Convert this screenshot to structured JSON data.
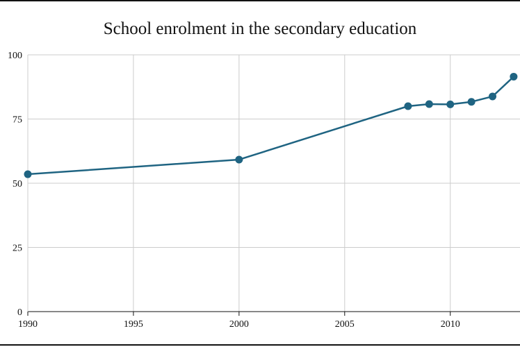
{
  "chart_data": {
    "type": "line",
    "title": "School enrolment in the secondary education",
    "xlabel": "",
    "ylabel": "",
    "x_ticks": [
      "1990",
      "1995",
      "2000",
      "2005",
      "2010"
    ],
    "y_ticks": [
      "0",
      "25",
      "50",
      "75",
      "100"
    ],
    "xlim": [
      1990,
      2013.3
    ],
    "ylim": [
      0,
      100
    ],
    "grid": true,
    "series": [
      {
        "color": "#1f6482",
        "x": [
          1990,
          2000,
          2008,
          2009,
          2010,
          2011,
          2012,
          2013
        ],
        "y": [
          53.5,
          59.2,
          80.0,
          80.8,
          80.7,
          81.7,
          83.8,
          91.5
        ]
      }
    ]
  }
}
